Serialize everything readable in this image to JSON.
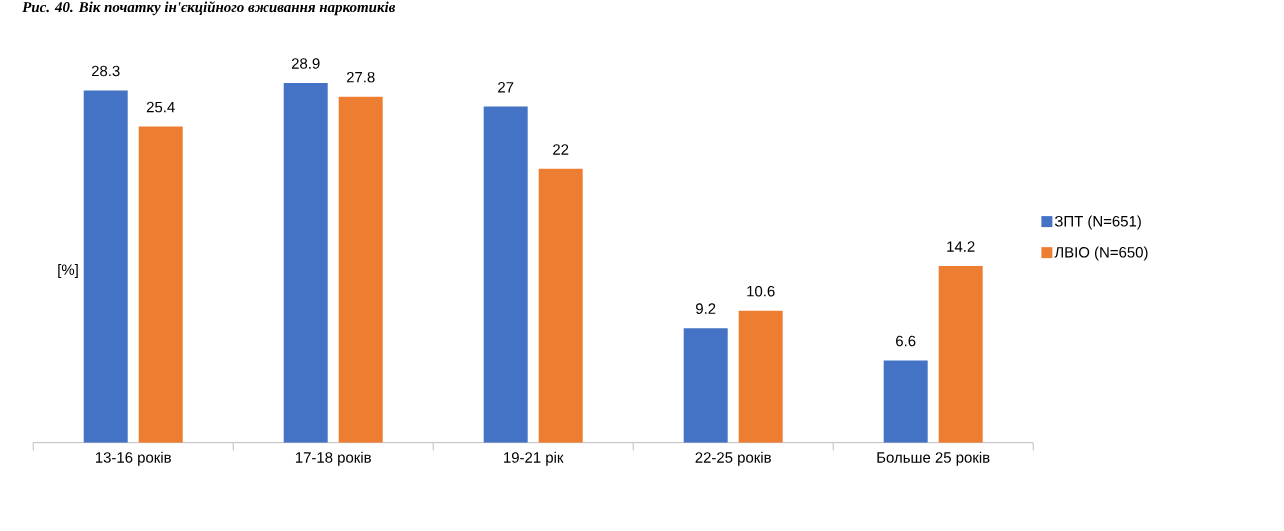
{
  "chart_data": {
    "type": "bar",
    "title": "Рис. 40. Вік початку ін'єкційного вживання наркотиків",
    "ylabel": "[%]",
    "categories": [
      "13-16 років",
      "17-18 років",
      "19-21 рік",
      "22-25 років",
      "Больше 25 років"
    ],
    "series": [
      {
        "name": "ЗПТ (N=651)",
        "color": "#4472c4",
        "values": [
          28.3,
          28.9,
          27,
          9.2,
          6.6
        ]
      },
      {
        "name": "ЛВІО (N=650)",
        "color": "#ed7d31",
        "values": [
          25.4,
          27.8,
          22,
          10.6,
          14.2
        ]
      }
    ],
    "data_labels": true,
    "legend": "right"
  }
}
